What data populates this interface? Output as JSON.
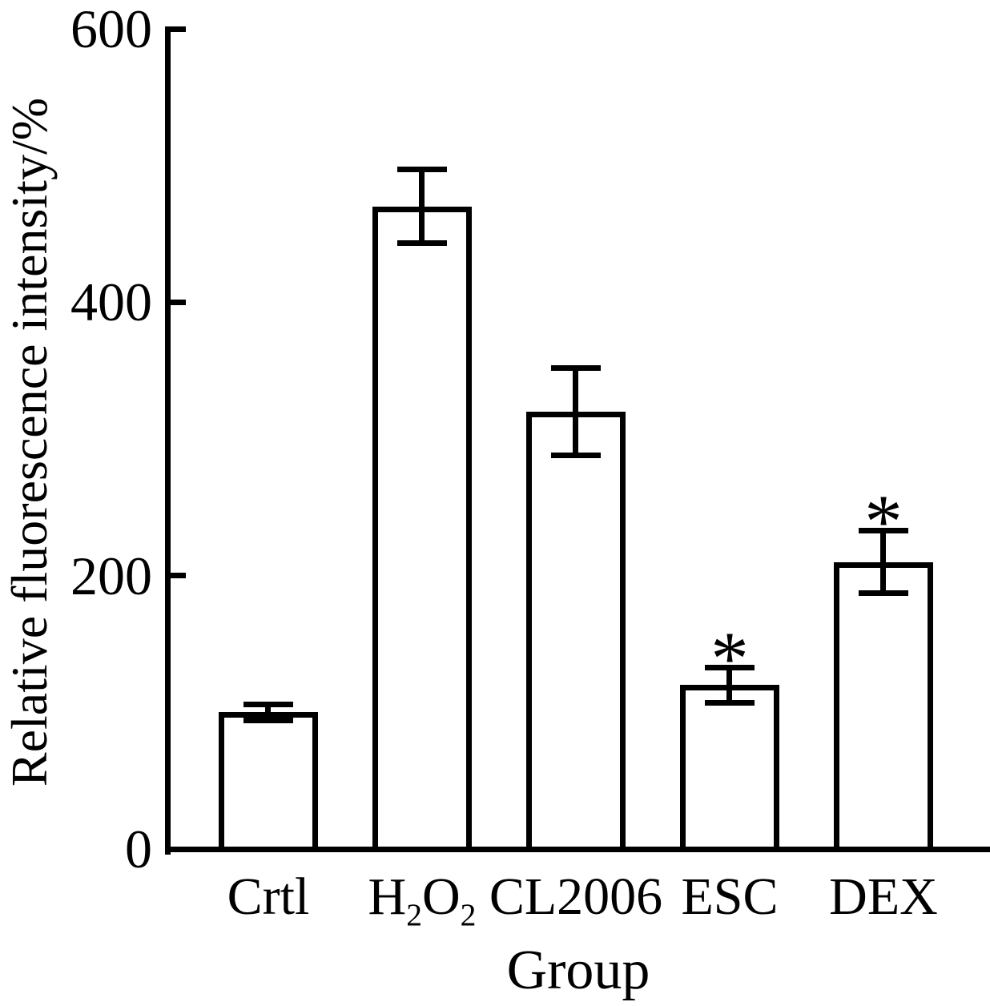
{
  "chart_data": {
    "type": "bar",
    "title": "",
    "xlabel": "Group",
    "ylabel": "Relative fluorescence intensity/%",
    "categories": [
      "Crtl",
      "H_2O_2",
      "CL2006",
      "ESC",
      "DEX"
    ],
    "values": [
      100,
      470,
      320,
      120,
      210
    ],
    "errors": [
      6,
      27,
      32,
      13,
      23
    ],
    "significance": [
      "",
      "",
      "",
      "*",
      "*"
    ],
    "ylim": [
      0,
      600
    ],
    "yticks": [
      0,
      200,
      400,
      600
    ],
    "grid": "off",
    "legend": "none",
    "bar_fill": "#ffffff",
    "bar_stroke": "#000000",
    "axis_color": "#000000"
  }
}
